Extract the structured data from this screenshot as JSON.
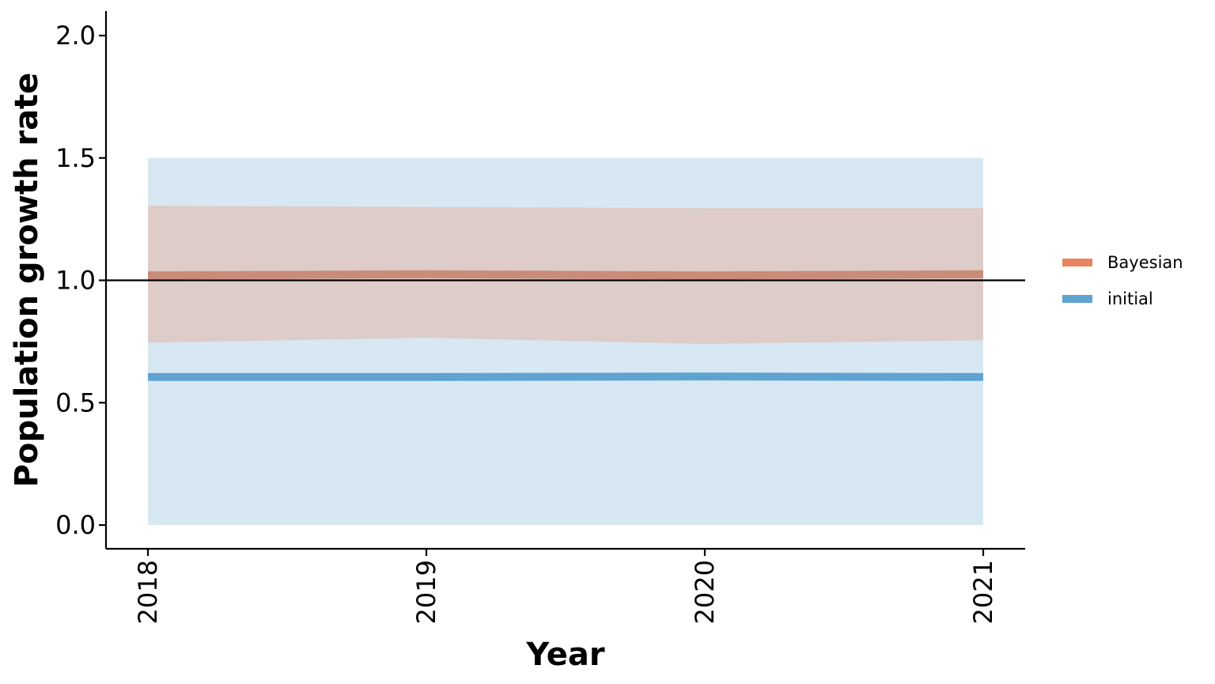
{
  "chart_data": {
    "type": "line",
    "title": "",
    "xlabel": "Year",
    "ylabel": "Population growth rate",
    "x": [
      2018,
      2019,
      2020,
      2021
    ],
    "x_tick_labels": [
      "2018",
      "2019",
      "2020",
      "2021"
    ],
    "y_ticks": [
      0.0,
      0.5,
      1.0,
      1.5,
      2.0
    ],
    "y_tick_labels": [
      "0.0",
      "0.5",
      "1.0",
      "1.5",
      "2.0"
    ],
    "ylim": [
      -0.1,
      2.1
    ],
    "reference_line": {
      "y": 1.0,
      "color": "#000000"
    },
    "series": [
      {
        "name": "Bayesian",
        "color": "#E8845F",
        "band_color": "#D6B8AE",
        "values": [
          1.02,
          1.025,
          1.02,
          1.025
        ],
        "lower": [
          0.745,
          0.765,
          0.74,
          0.755
        ],
        "upper": [
          1.305,
          1.3,
          1.295,
          1.295
        ]
      },
      {
        "name": "initial",
        "color": "#5FA3D1",
        "band_color": "#D8E8F2",
        "values": [
          0.605,
          0.605,
          0.607,
          0.605
        ],
        "lower": [
          0.0,
          0.0,
          0.0,
          0.0
        ],
        "upper": [
          1.5,
          1.5,
          1.5,
          1.5
        ]
      }
    ],
    "grid": false,
    "legend_position": "right"
  }
}
